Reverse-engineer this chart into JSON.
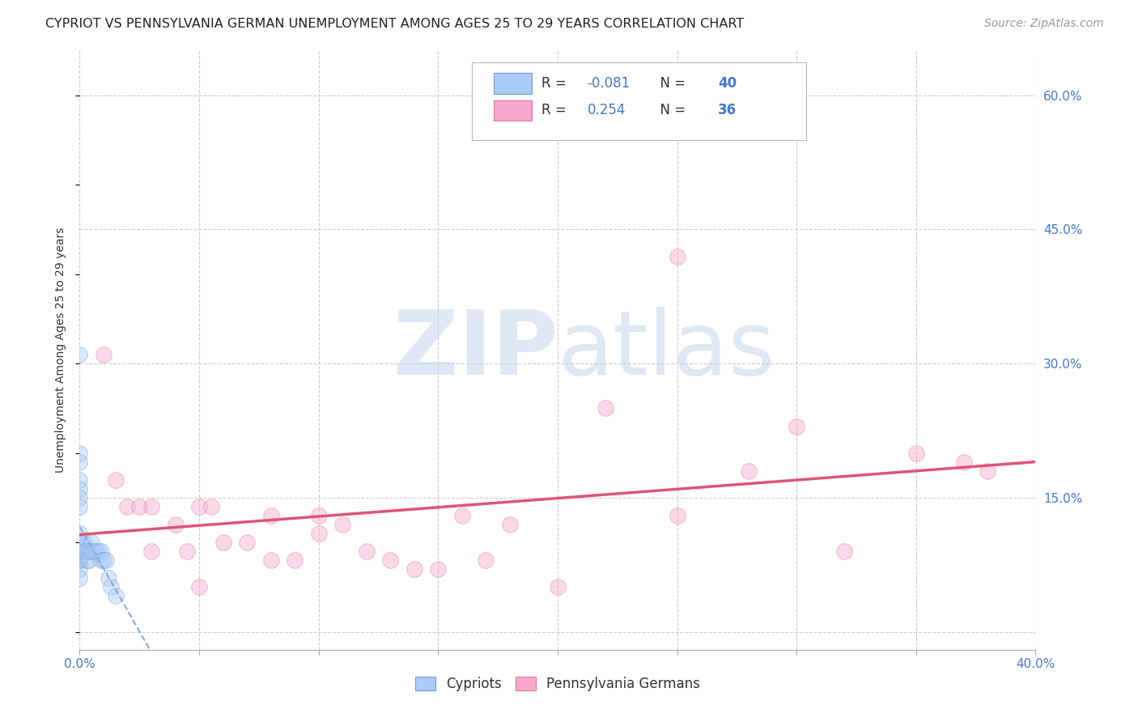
{
  "title": "CYPRIOT VS PENNSYLVANIA GERMAN UNEMPLOYMENT AMONG AGES 25 TO 29 YEARS CORRELATION CHART",
  "source": "Source: ZipAtlas.com",
  "ylabel": "Unemployment Among Ages 25 to 29 years",
  "xlim": [
    0.0,
    0.4
  ],
  "ylim": [
    -0.02,
    0.65
  ],
  "xticks": [
    0.0,
    0.05,
    0.1,
    0.15,
    0.2,
    0.25,
    0.3,
    0.35,
    0.4
  ],
  "xticklabels": [
    "0.0%",
    "",
    "",
    "",
    "",
    "",
    "",
    "",
    "40.0%"
  ],
  "yticks_right": [
    0.0,
    0.15,
    0.3,
    0.45,
    0.6
  ],
  "yticklabels_right": [
    "",
    "15.0%",
    "30.0%",
    "45.0%",
    "60.0%"
  ],
  "background_color": "#ffffff",
  "grid_color": "#cccccc",
  "watermark_zip": "ZIP",
  "watermark_atlas": "atlas",
  "cypriot_color": "#aaccf8",
  "cypriot_edge_color": "#7799cc",
  "penn_color": "#f8aacc",
  "penn_edge_color": "#dd7799",
  "cypriot_trend_color": "#88aadd",
  "penn_trend_color": "#dd5577",
  "R_cypriot": -0.081,
  "N_cypriot": 40,
  "R_penn": 0.254,
  "N_penn": 36,
  "cypriot_x": [
    0.0,
    0.0,
    0.0,
    0.0,
    0.0,
    0.0,
    0.0,
    0.0,
    0.0,
    0.0,
    0.0,
    0.0,
    0.0,
    0.0,
    0.0,
    0.0,
    0.0,
    0.0,
    0.0,
    0.0,
    0.001,
    0.001,
    0.002,
    0.002,
    0.003,
    0.003,
    0.004,
    0.004,
    0.005,
    0.005,
    0.006,
    0.007,
    0.008,
    0.009,
    0.009,
    0.01,
    0.011,
    0.012,
    0.013,
    0.015
  ],
  "cypriot_y": [
    0.31,
    0.2,
    0.19,
    0.17,
    0.16,
    0.15,
    0.14,
    0.11,
    0.1,
    0.1,
    0.09,
    0.09,
    0.09,
    0.09,
    0.08,
    0.08,
    0.08,
    0.08,
    0.07,
    0.06,
    0.1,
    0.09,
    0.1,
    0.09,
    0.09,
    0.08,
    0.09,
    0.08,
    0.1,
    0.09,
    0.09,
    0.09,
    0.09,
    0.09,
    0.08,
    0.08,
    0.08,
    0.06,
    0.05,
    0.04
  ],
  "penn_x": [
    0.01,
    0.015,
    0.02,
    0.025,
    0.03,
    0.04,
    0.045,
    0.05,
    0.055,
    0.06,
    0.07,
    0.08,
    0.09,
    0.1,
    0.11,
    0.12,
    0.13,
    0.14,
    0.15,
    0.16,
    0.17,
    0.18,
    0.2,
    0.22,
    0.25,
    0.28,
    0.3,
    0.35,
    0.37,
    0.38,
    0.03,
    0.05,
    0.08,
    0.1,
    0.25,
    0.32
  ],
  "penn_y": [
    0.31,
    0.17,
    0.14,
    0.14,
    0.14,
    0.12,
    0.09,
    0.14,
    0.14,
    0.1,
    0.1,
    0.13,
    0.08,
    0.13,
    0.12,
    0.09,
    0.08,
    0.07,
    0.07,
    0.13,
    0.08,
    0.12,
    0.05,
    0.25,
    0.42,
    0.18,
    0.23,
    0.2,
    0.19,
    0.18,
    0.09,
    0.05,
    0.08,
    0.11,
    0.13,
    0.09
  ],
  "marker_size": 200,
  "alpha": 0.45,
  "title_fontsize": 11.5,
  "source_fontsize": 10,
  "axis_label_fontsize": 10,
  "tick_fontsize": 11,
  "legend_fontsize": 12
}
